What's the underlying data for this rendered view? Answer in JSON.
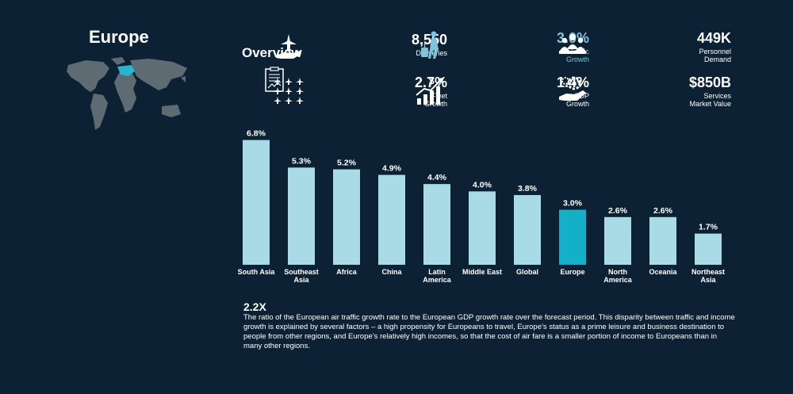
{
  "region": {
    "title": "Europe"
  },
  "overview": {
    "title": "Overview"
  },
  "stats": [
    {
      "value": "8,550",
      "label": "Deliveries",
      "icon": "aircraft-delivery-icon"
    },
    {
      "value": "3.0%",
      "label": "Traffic\nGrowth",
      "icon": "traveler-icon",
      "accent": true
    },
    {
      "value": "449K",
      "label": "Personnel\nDemand",
      "icon": "personnel-icon"
    },
    {
      "value": "2.7%",
      "label": "Fleet\nGrowth",
      "icon": "fleet-icon"
    },
    {
      "value": "1.4%",
      "label": "GDP\nGrowth",
      "icon": "gdp-growth-icon"
    },
    {
      "value": "$850B",
      "label": "Services\nMarket Value",
      "icon": "services-icon"
    }
  ],
  "colors": {
    "bar": "#a8dbe6",
    "highlight": "#13b0c8",
    "background": "#0c2234",
    "accent_text": "#7fc3dc"
  },
  "chart_data": {
    "type": "bar",
    "categories": [
      "South Asia",
      "Southeast Asia",
      "Africa",
      "China",
      "Latin America",
      "Middle East",
      "Global",
      "Europe",
      "North America",
      "Oceania",
      "Northeast Asia"
    ],
    "category_lines": [
      [
        "South Asia"
      ],
      [
        "Southeast",
        "Asia"
      ],
      [
        "Africa"
      ],
      [
        "China"
      ],
      [
        "Latin",
        "America"
      ],
      [
        "Middle East"
      ],
      [
        "Global"
      ],
      [
        "Europe"
      ],
      [
        "North",
        "America"
      ],
      [
        "Oceania"
      ],
      [
        "Northeast",
        "Asia"
      ]
    ],
    "values": [
      6.8,
      5.3,
      5.2,
      4.9,
      4.4,
      4.0,
      3.8,
      3.0,
      2.6,
      2.6,
      1.7
    ],
    "value_labels": [
      "6.8%",
      "5.3%",
      "5.2%",
      "4.9%",
      "4.4%",
      "4.0%",
      "3.8%",
      "3.0%",
      "2.6%",
      "2.6%",
      "1.7%"
    ],
    "highlight": "Europe",
    "ylim": [
      0,
      7
    ],
    "grid": false
  },
  "note": {
    "title": "2.2X",
    "body": "The ratio of the European air traffic growth rate to the European GDP growth rate over the forecast period.  This disparity between traffic and income growth is explained by several factors – a high propensity for Europeans to travel, Europe’s status as a prime leisure and business destination to people from other regions, and Europe’s relatively high incomes, so that the cost of air fare is a smaller portion of income to Europeans than in many other regions."
  }
}
